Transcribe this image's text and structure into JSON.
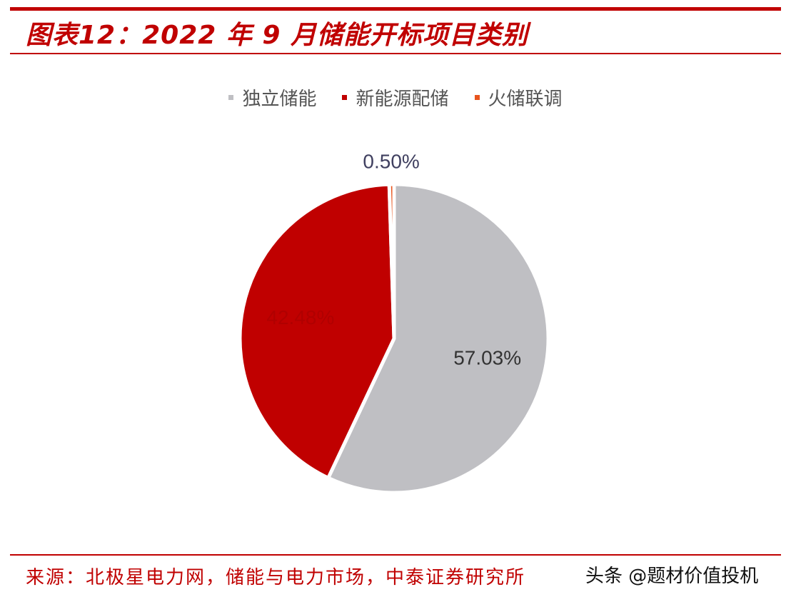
{
  "title": "图表12：2022 年 9 月储能开标项目类别",
  "source": "来源：北极星电力网，储能与电力市场，中泰证券研究所",
  "watermark": "头条 @题材价值投机",
  "chart_data": {
    "type": "pie",
    "legend_position": "top",
    "labels": [
      "独立储能",
      "新能源配储",
      "火储联调"
    ],
    "values": [
      57.03,
      42.48,
      0.5
    ],
    "data_labels": [
      "57.03%",
      "42.48%",
      "0.50%"
    ],
    "colors": [
      "#bfbfc3",
      "#c00000",
      "#e8541e"
    ],
    "label_colors": [
      "#333333",
      "#b00000",
      "#404060"
    ]
  }
}
